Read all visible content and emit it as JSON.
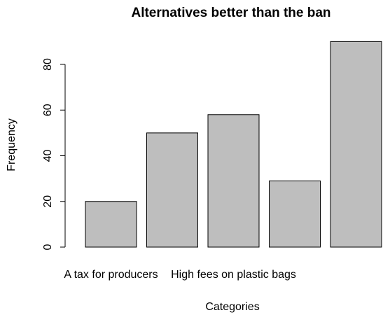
{
  "chart_data": {
    "type": "bar",
    "title": "Alternatives better than the ban",
    "xlabel": "Categories",
    "ylabel": "Frequency",
    "categories": [
      "A tax for producers",
      "",
      "High fees on plastic bags",
      "",
      ""
    ],
    "values": [
      20,
      50,
      58,
      29,
      90
    ],
    "yticks": [
      "0",
      "20",
      "40",
      "60",
      "80"
    ],
    "ylim": [
      0,
      90
    ],
    "bar_color": "#bebebe",
    "grid": false,
    "legend": "none"
  }
}
